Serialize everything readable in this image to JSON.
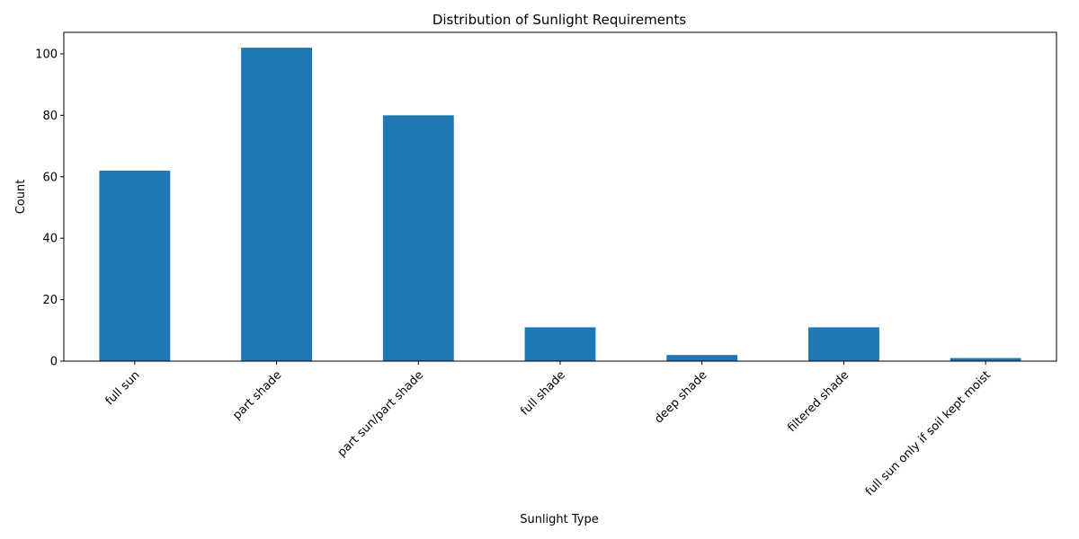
{
  "chart_data": {
    "type": "bar",
    "title": "Distribution of Sunlight Requirements",
    "xlabel": "Sunlight Type",
    "ylabel": "Count",
    "categories": [
      "full sun",
      "part shade",
      "part sun/part shade",
      "full shade",
      "deep shade",
      "filtered shade",
      "full sun only if soil kept moist"
    ],
    "values": [
      62,
      102,
      80,
      11,
      2,
      11,
      1
    ],
    "ylim": [
      0,
      107
    ],
    "yticks": [
      0,
      20,
      40,
      60,
      80,
      100
    ],
    "x_tick_rotation_deg": 45,
    "grid": false,
    "legend": "none",
    "bar_color": "#1f77b4"
  }
}
